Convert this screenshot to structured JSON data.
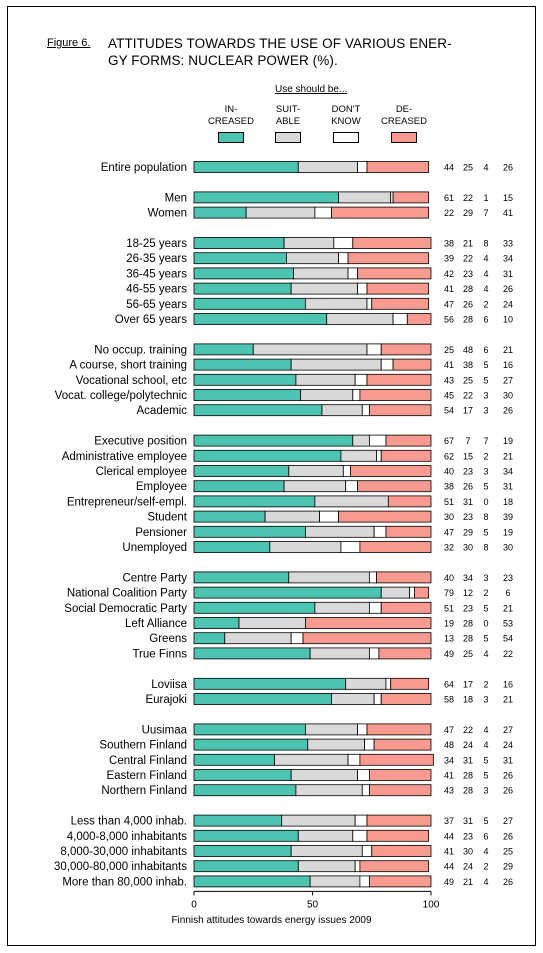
{
  "figure_label": "Figure 6.",
  "title": "ATTITUDES TOWARDS THE USE OF VARIOUS ENERGY FORMS: NUCLEAR POWER (%).",
  "title_line1": "ATTITUDES TOWARDS THE USE OF VARIOUS ENER-",
  "title_line2": "GY FORMS: NUCLEAR POWER (%).",
  "legend_heading": "Use should be...",
  "legend": [
    {
      "line1": "IN-",
      "line2": "CREASED",
      "color": "#4dc3b1"
    },
    {
      "line1": "SUIT-",
      "line2": "ABLE",
      "color": "#d9d9d9"
    },
    {
      "line1": "DON'T",
      "line2": "KNOW",
      "color": "#ffffff"
    },
    {
      "line1": "DE-",
      "line2": "CREASED",
      "color": "#f79a8f"
    }
  ],
  "footer": "Finnish attitudes towards energy issues 2009",
  "chart_data": {
    "type": "bar",
    "orientation": "horizontal",
    "stacked": true,
    "xlim": [
      0,
      100
    ],
    "x_ticks": [
      0,
      50,
      100
    ],
    "series_names": [
      "IN-CREASED",
      "SUIT-ABLE",
      "DON'T KNOW",
      "DE-CREASED"
    ],
    "colors": [
      "#4dc3b1",
      "#d9d9d9",
      "#ffffff",
      "#f79a8f"
    ],
    "groups": [
      {
        "rows": [
          {
            "label": "Entire population",
            "values": [
              44,
              25,
              4,
              26
            ]
          }
        ]
      },
      {
        "rows": [
          {
            "label": "Men",
            "values": [
              61,
              22,
              1,
              15
            ]
          },
          {
            "label": "Women",
            "values": [
              22,
              29,
              7,
              41
            ]
          }
        ]
      },
      {
        "rows": [
          {
            "label": "18-25 years",
            "values": [
              38,
              21,
              8,
              33
            ]
          },
          {
            "label": "26-35 years",
            "values": [
              39,
              22,
              4,
              34
            ]
          },
          {
            "label": "36-45 years",
            "values": [
              42,
              23,
              4,
              31
            ]
          },
          {
            "label": "46-55 years",
            "values": [
              41,
              28,
              4,
              26
            ]
          },
          {
            "label": "56-65 years",
            "values": [
              47,
              26,
              2,
              24
            ]
          },
          {
            "label": "Over 65 years",
            "values": [
              56,
              28,
              6,
              10
            ]
          }
        ]
      },
      {
        "rows": [
          {
            "label": "No occup. training",
            "values": [
              25,
              48,
              6,
              21
            ]
          },
          {
            "label": "A course, short training",
            "values": [
              41,
              38,
              5,
              16
            ]
          },
          {
            "label": "Vocational school, etc",
            "values": [
              43,
              25,
              5,
              27
            ]
          },
          {
            "label": "Vocat. college/polytechnic",
            "values": [
              45,
              22,
              3,
              30
            ]
          },
          {
            "label": "Academic",
            "values": [
              54,
              17,
              3,
              26
            ]
          }
        ]
      },
      {
        "rows": [
          {
            "label": "Executive position",
            "values": [
              67,
              7,
              7,
              19
            ]
          },
          {
            "label": "Administrative employee",
            "values": [
              62,
              15,
              2,
              21
            ]
          },
          {
            "label": "Clerical employee",
            "values": [
              40,
              23,
              3,
              34
            ]
          },
          {
            "label": "Employee",
            "values": [
              38,
              26,
              5,
              31
            ]
          },
          {
            "label": "Entrepreneur/self-empl.",
            "values": [
              51,
              31,
              0,
              18
            ]
          },
          {
            "label": "Student",
            "values": [
              30,
              23,
              8,
              39
            ]
          },
          {
            "label": "Pensioner",
            "values": [
              47,
              29,
              5,
              19
            ]
          },
          {
            "label": "Unemployed",
            "values": [
              32,
              30,
              8,
              30
            ]
          }
        ]
      },
      {
        "rows": [
          {
            "label": "Centre Party",
            "values": [
              40,
              34,
              3,
              23
            ]
          },
          {
            "label": "National Coalition Party",
            "values": [
              79,
              12,
              2,
              6
            ]
          },
          {
            "label": "Social Democratic Party",
            "values": [
              51,
              23,
              5,
              21
            ]
          },
          {
            "label": "Left Alliance",
            "values": [
              19,
              28,
              0,
              53
            ]
          },
          {
            "label": "Greens",
            "values": [
              13,
              28,
              5,
              54
            ]
          },
          {
            "label": "True Finns",
            "values": [
              49,
              25,
              4,
              22
            ]
          }
        ]
      },
      {
        "rows": [
          {
            "label": "Loviisa",
            "values": [
              64,
              17,
              2,
              16
            ]
          },
          {
            "label": "Eurajoki",
            "values": [
              58,
              18,
              3,
              21
            ]
          }
        ]
      },
      {
        "rows": [
          {
            "label": "Uusimaa",
            "values": [
              47,
              22,
              4,
              27
            ]
          },
          {
            "label": "Southern Finland",
            "values": [
              48,
              24,
              4,
              24
            ]
          },
          {
            "label": "Central Finland",
            "values": [
              34,
              31,
              5,
              31
            ]
          },
          {
            "label": "Eastern Finland",
            "values": [
              41,
              28,
              5,
              26
            ]
          },
          {
            "label": "Northern Finland",
            "values": [
              43,
              28,
              3,
              26
            ]
          }
        ]
      },
      {
        "rows": [
          {
            "label": "Less than 4,000 inhab.",
            "values": [
              37,
              31,
              5,
              27
            ]
          },
          {
            "label": "4,000-8,000 inhabitants",
            "values": [
              44,
              23,
              6,
              26
            ]
          },
          {
            "label": "8,000-30,000 inhabitants",
            "values": [
              41,
              30,
              4,
              25
            ]
          },
          {
            "label": "30,000-80,000 inhabitants",
            "values": [
              44,
              24,
              2,
              29
            ]
          },
          {
            "label": "More than 80,000 inhab.",
            "values": [
              49,
              21,
              4,
              26
            ]
          }
        ]
      }
    ]
  }
}
